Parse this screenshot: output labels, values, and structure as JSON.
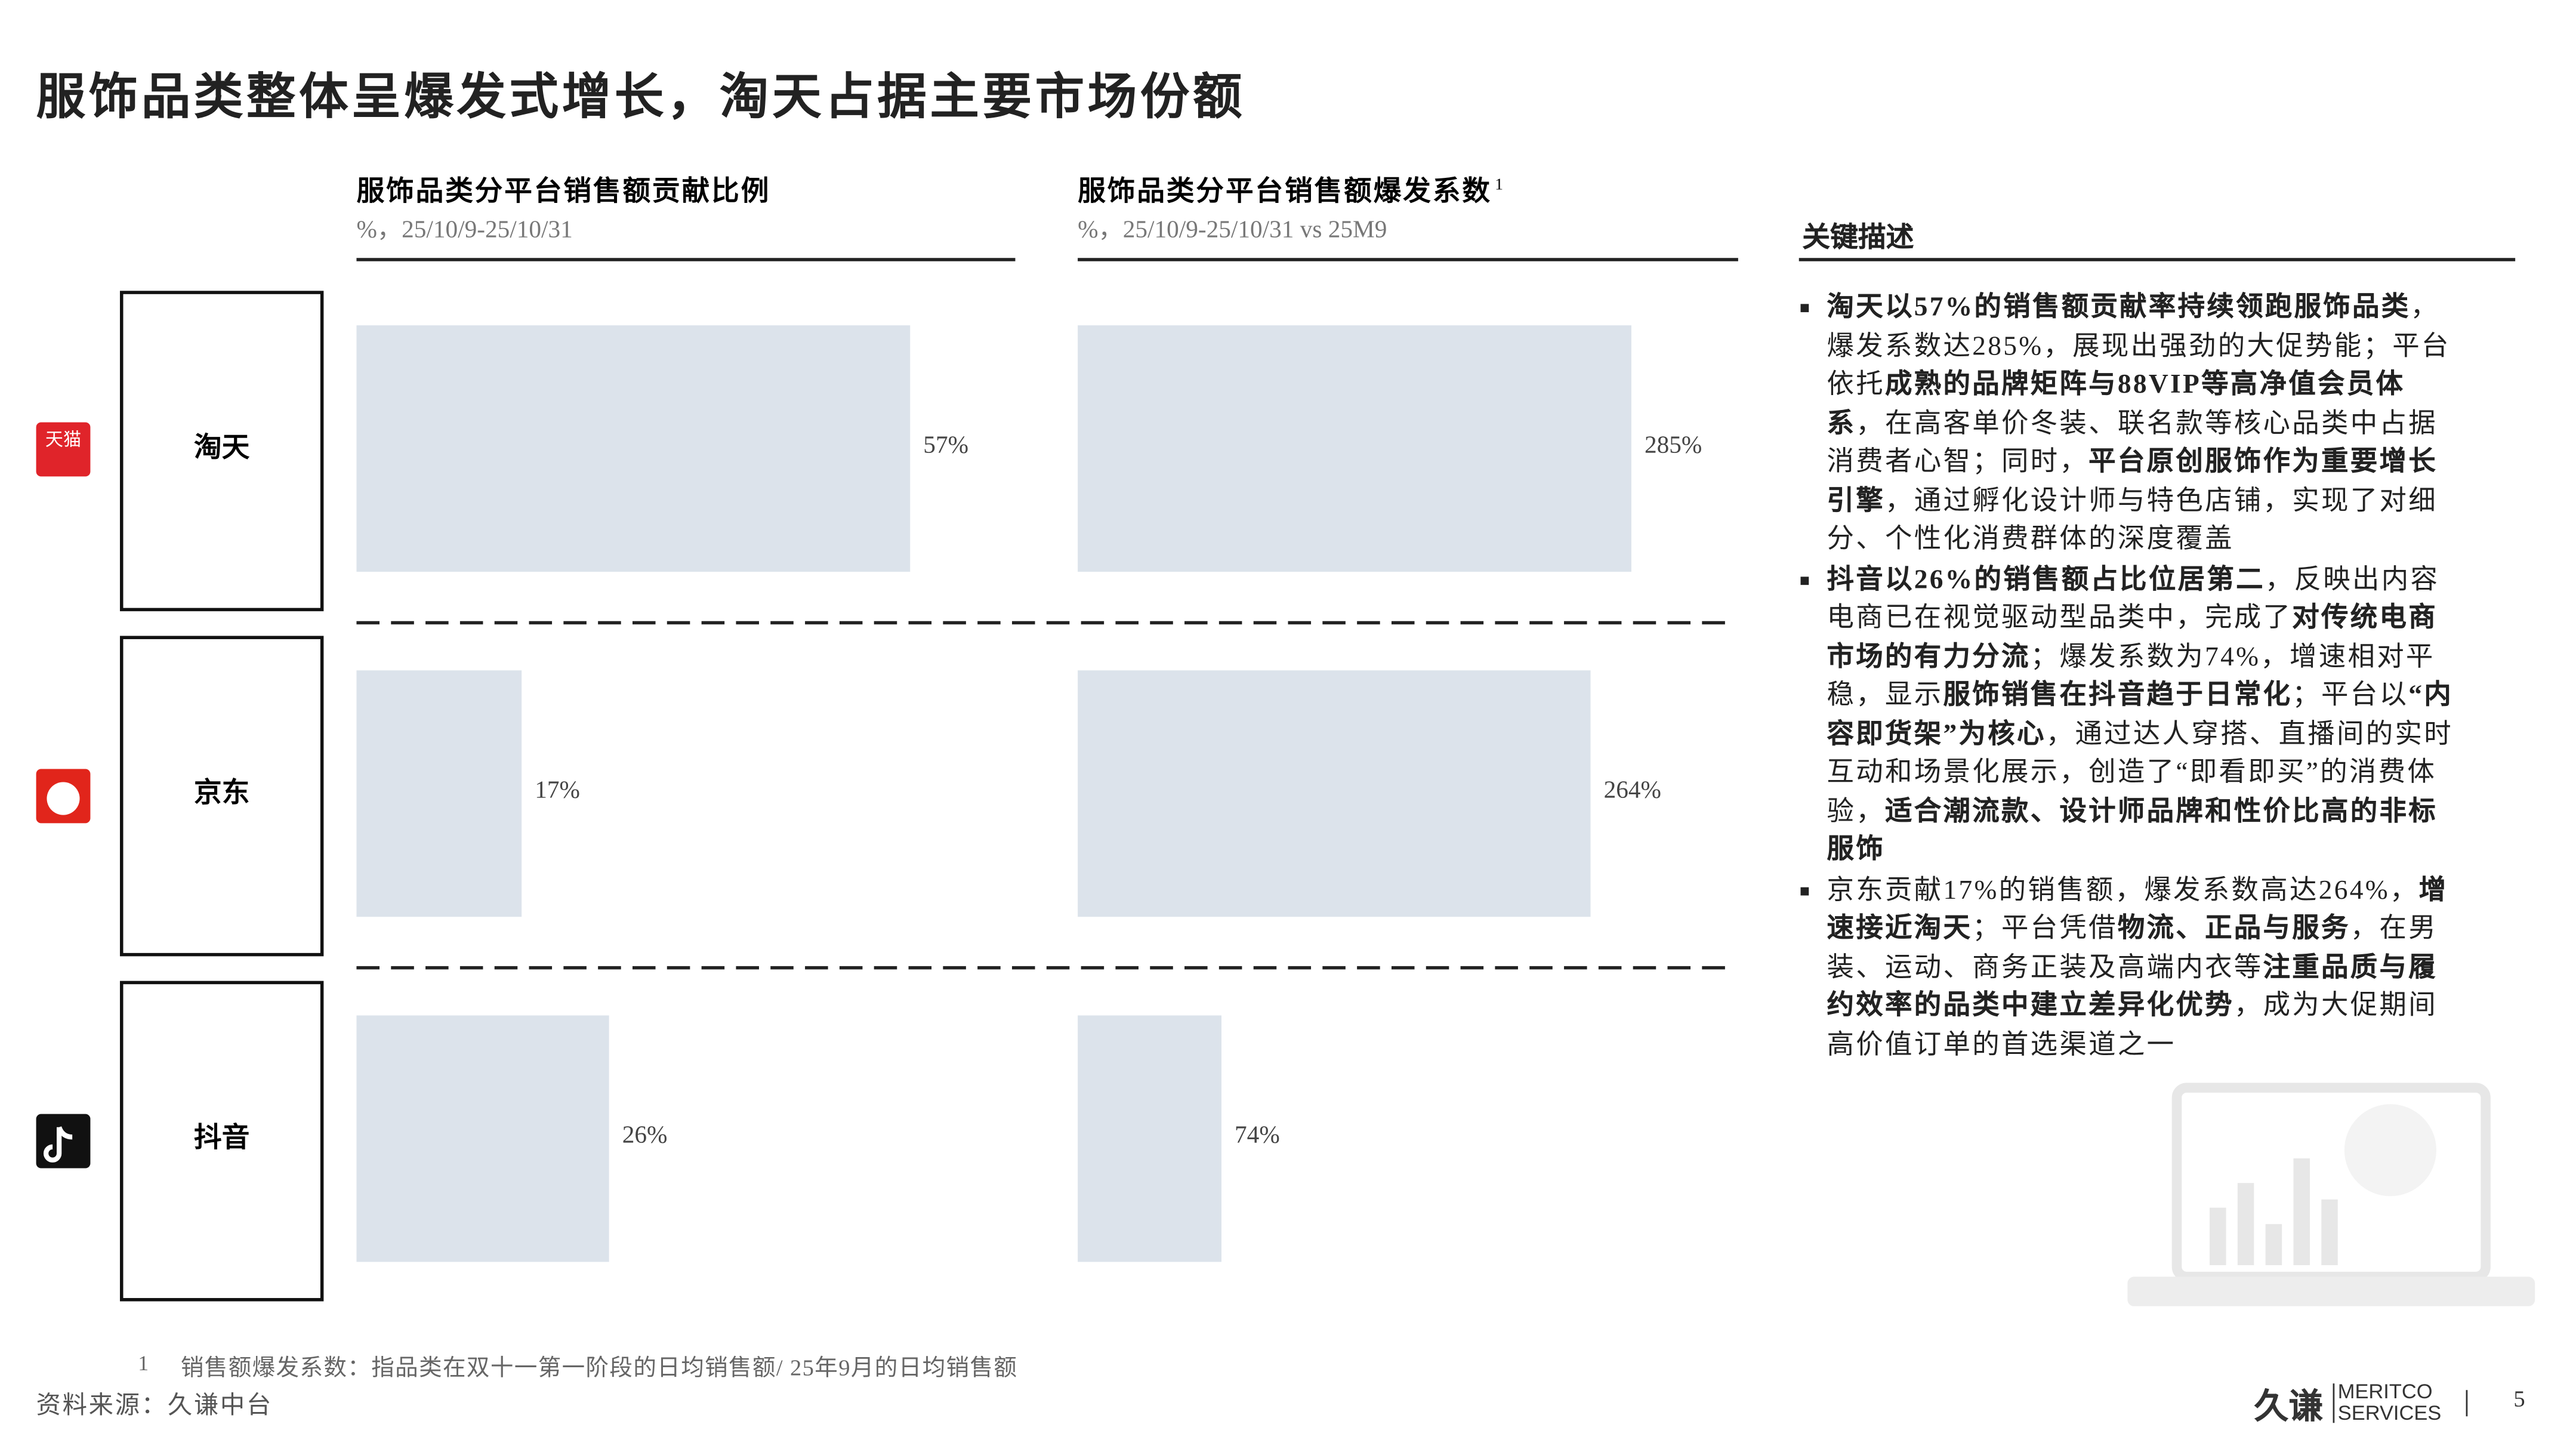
{
  "header": {
    "title": "服饰品类整体呈爆发式增长，淘天占据主要市场份额"
  },
  "chart_data": [
    {
      "type": "bar",
      "orientation": "horizontal",
      "title": "服饰品类分平台销售额贡献比例",
      "subtitle": "%，25/10/9-25/10/31",
      "categories": [
        "淘天",
        "京东",
        "抖音"
      ],
      "values": [
        57,
        17,
        26
      ],
      "value_labels": [
        "57%",
        "17%",
        "26%"
      ],
      "color": "#dce3eb"
    },
    {
      "type": "bar",
      "orientation": "horizontal",
      "title": "服饰品类分平台销售额爆发系数",
      "title_note": "1",
      "subtitle": "%，25/10/9-25/10/31 vs 25M9",
      "values": [
        285,
        264,
        74
      ],
      "value_labels": [
        "285%",
        "264%",
        "74%"
      ],
      "color": "#dce3eb"
    }
  ],
  "icons": [
    "天猫"
  ],
  "description": {
    "title": "关键描述",
    "bullets": [
      [
        {
          "text": "淘天以57%的销售额贡献率持续领跑服饰品类",
          "bold": true
        },
        {
          "text": "，爆发系数达285%，展现出强劲的大促势能；平台依托",
          "bold": false
        },
        {
          "text": "成熟的品牌矩阵与88VIP等高净值会员体系",
          "bold": true
        },
        {
          "text": "，在高客单价冬装、联名款等核心品类中占据消费者心智；同时，",
          "bold": false
        },
        {
          "text": "平台原创服饰作为重要增长引擎",
          "bold": true
        },
        {
          "text": "，通过孵化设计师与特色店铺，实现了对细分、个性化消费群体的深度覆盖",
          "bold": false
        }
      ],
      [
        {
          "text": "抖音以26%的销售额占比位居第二",
          "bold": true
        },
        {
          "text": "，反映出内容电商已在视觉驱动型品类中，完成了",
          "bold": false
        },
        {
          "text": "对传统电商市场的有力分流",
          "bold": true
        },
        {
          "text": "；爆发系数为74%，增速相对平稳，显示",
          "bold": false
        },
        {
          "text": "服饰销售在抖音趋于日常化",
          "bold": true
        },
        {
          "text": "；平台以",
          "bold": false
        },
        {
          "text": "“内容即货架”为核心",
          "bold": true
        },
        {
          "text": "，通过达人穿搭、直播间的实时互动和场景化展示，创造了“即看即买”的消费体验，",
          "bold": false
        },
        {
          "text": "适合潮流款、设计师品牌和性价比高的非标服饰",
          "bold": true
        }
      ],
      [
        {
          "text": "京东贡献17%的销售额，爆发系数高达264%，",
          "bold": false
        },
        {
          "text": "增速接近淘天",
          "bold": true
        },
        {
          "text": "；平台凭借",
          "bold": false
        },
        {
          "text": "物流、正品与服务",
          "bold": true
        },
        {
          "text": "，在男装、运动、商务正装及高端内衣等",
          "bold": false
        },
        {
          "text": "注重品质与履约效率的品类中建立差异化优势",
          "bold": true
        },
        {
          "text": "，成为大促期间高价值订单的首选渠道之一",
          "bold": false
        }
      ]
    ]
  },
  "footnote": {
    "marker": "1",
    "text": "销售额爆发系数：指品类在双十一第一阶段的日均销售额/ 25年9月的日均销售额"
  },
  "source": "资料来源：久谦中台",
  "logo": {
    "cn": "久谦",
    "en1": "MERITCO",
    "en2": "SERVICES"
  },
  "page_number": "5"
}
